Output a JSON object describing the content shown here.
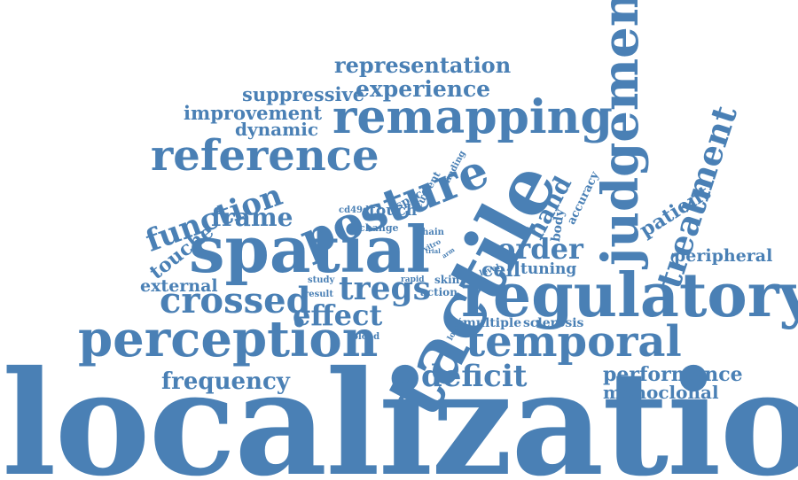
{
  "color": "#4a80b5",
  "words": {
    "localization": "localization",
    "tactile": "tactile",
    "spatial": "spatial",
    "regulatory": "regulatory",
    "judgement": "judgement",
    "remapping": "remapping",
    "posture": "posture",
    "perception": "perception",
    "temporal": "temporal",
    "reference": "reference",
    "treatment": "treatment",
    "crossed": "crossed",
    "function": "function",
    "tregs": "tregs",
    "effect": "effect",
    "frame": "frame",
    "representation": "representation",
    "experience": "experience",
    "suppressive": "suppressive",
    "improvement": "improvement",
    "dynamic": "dynamic",
    "hand": "hand",
    "patient": "patient",
    "order": "order",
    "deficit": "deficit",
    "frequency": "frequency",
    "performance": "performance",
    "monoclonal": "monoclonal",
    "peripheral": "peripheral",
    "external": "external",
    "touche": "touche",
    "touch": "touch",
    "cell": "cell",
    "tuning": "tuning",
    "multiple": "multiple",
    "sclerosis": "sclerosis",
    "body": "body",
    "accuracy": "accuracy",
    "space": "space",
    "current": "current",
    "finding": "finding",
    "cd49d": "cd49d",
    "change": "change",
    "chain": "chain",
    "vitro": "vitro",
    "trial": "trial",
    "arm": "arm",
    "level": "level",
    "study": "study",
    "rapid": "rapid",
    "skin": "skin",
    "result": "result",
    "action": "action",
    "blood": "blood",
    "lower": "lower"
  }
}
